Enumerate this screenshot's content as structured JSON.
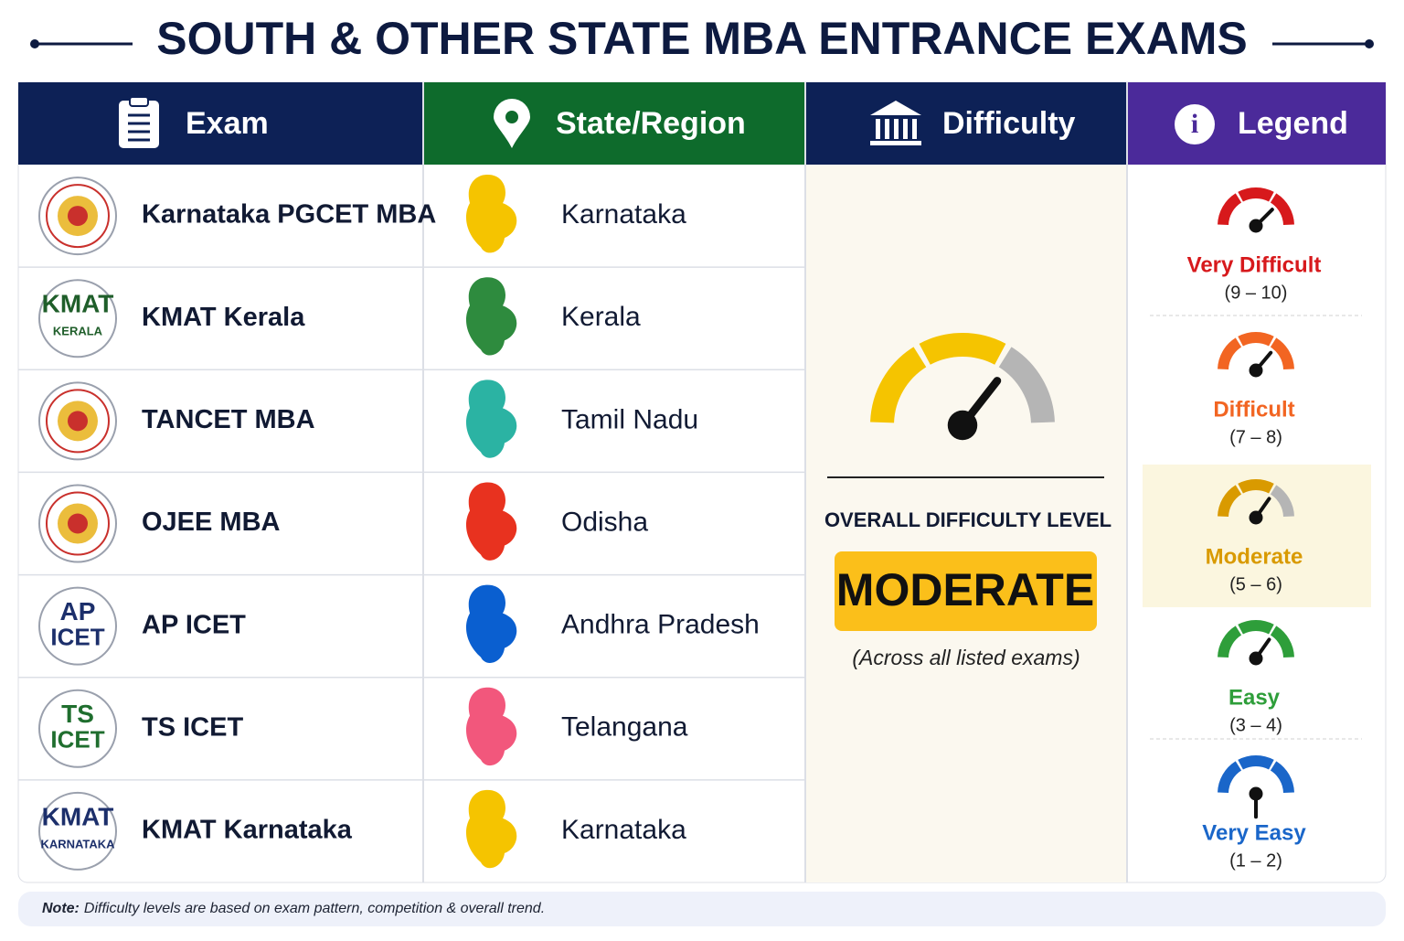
{
  "header": {
    "title": "SOUTH & OTHER STATE MBA ENTRANCE EXAMS"
  },
  "table": {
    "columns": [
      {
        "label": "Exam",
        "color": "#0d2156"
      },
      {
        "label": "State/Region",
        "color": "#0e6b2c"
      },
      {
        "label": "Difficulty",
        "color": "#0d2156"
      },
      {
        "label": "Legend",
        "color": "#4b2a9a"
      }
    ],
    "rows": [
      {
        "exam": "Karnataka PGCET MBA",
        "state": "Karnataka",
        "map_color": "#f5c400"
      },
      {
        "exam": "KMAT Kerala",
        "logo_text": [
          "KMAT",
          "KERALA"
        ],
        "logo_color": "#1f5e2a",
        "state": "Kerala",
        "map_color": "#2e8b3e"
      },
      {
        "exam": "TANCET MBA",
        "state": "Tamil Nadu",
        "map_color": "#2bb3a3"
      },
      {
        "exam": "OJEE MBA",
        "state": "Odisha",
        "map_color": "#e8321f"
      },
      {
        "exam": "AP ICET",
        "logo_text": [
          "AP",
          "ICET"
        ],
        "logo_color": "#1c2f6b",
        "state": "Andhra Pradesh",
        "map_color": "#0a5fd0"
      },
      {
        "exam": "TS ICET",
        "logo_text": [
          "TS",
          "ICET"
        ],
        "logo_color": "#1f6e2e",
        "state": "Telangana",
        "map_color": "#f2577c"
      },
      {
        "exam": "KMAT Karnataka",
        "logo_text": [
          "KMAT",
          "KARNATAKA"
        ],
        "logo_color": "#1c2f6b",
        "state": "Karnataka",
        "map_color": "#f5c400"
      }
    ]
  },
  "difficulty": {
    "caption": "OVERALL DIFFICULTY LEVEL",
    "level": "MODERATE",
    "scope": "(Across all listed exams)"
  },
  "legend": [
    {
      "label": "Very Difficult",
      "range": "(9 – 10)",
      "color": "#d7191c"
    },
    {
      "label": "Difficult",
      "range": "(7 – 8)",
      "color": "#f26522"
    },
    {
      "label": "Moderate",
      "range": "(5 – 6)",
      "color": "#d99a00"
    },
    {
      "label": "Easy",
      "range": "(3 – 4)",
      "color": "#2e9e3a"
    },
    {
      "label": "Very Easy",
      "range": "(1 – 2)",
      "color": "#1a66c9"
    }
  ],
  "note": {
    "label": "Note:",
    "text": "Difficulty levels are based on exam pattern, competition & overall trend."
  }
}
